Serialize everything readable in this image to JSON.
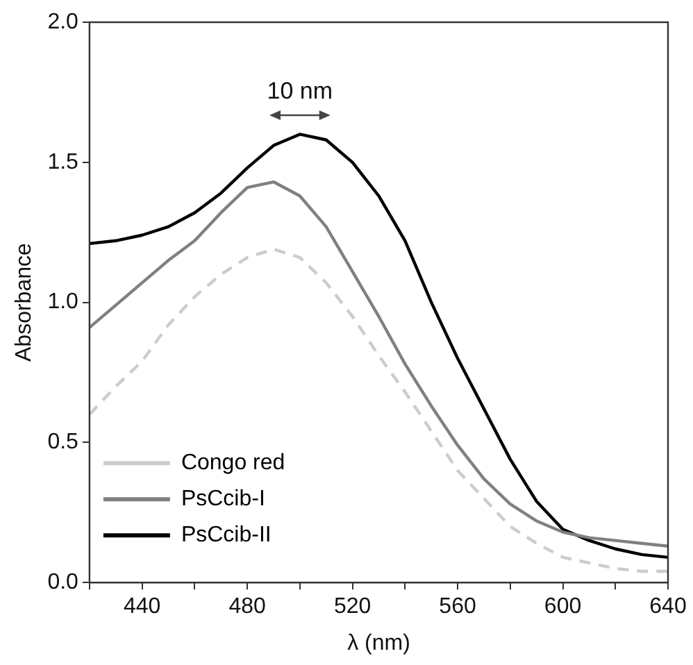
{
  "chart_data": {
    "type": "line",
    "xlabel": "λ (nm)",
    "ylabel": "Absorbance",
    "x": [
      420,
      430,
      440,
      450,
      460,
      470,
      480,
      490,
      500,
      510,
      520,
      530,
      540,
      550,
      560,
      570,
      580,
      590,
      600,
      610,
      620,
      630,
      640
    ],
    "series": [
      {
        "name": "Congo red",
        "color": "#cccccc",
        "line_style": "dashed",
        "values": [
          0.6,
          0.7,
          0.79,
          0.92,
          1.02,
          1.1,
          1.16,
          1.19,
          1.16,
          1.07,
          0.95,
          0.81,
          0.68,
          0.54,
          0.4,
          0.3,
          0.2,
          0.14,
          0.09,
          0.07,
          0.05,
          0.04,
          0.04
        ]
      },
      {
        "name": "PsCcib-I",
        "color": "#808080",
        "line_style": "solid",
        "values": [
          0.91,
          0.99,
          1.07,
          1.15,
          1.22,
          1.32,
          1.41,
          1.43,
          1.38,
          1.27,
          1.11,
          0.95,
          0.78,
          0.63,
          0.49,
          0.37,
          0.28,
          0.22,
          0.18,
          0.16,
          0.15,
          0.14,
          0.13
        ]
      },
      {
        "name": "PsCcib-II",
        "color": "#000000",
        "line_style": "solid",
        "values": [
          1.21,
          1.22,
          1.24,
          1.27,
          1.32,
          1.39,
          1.48,
          1.56,
          1.6,
          1.58,
          1.5,
          1.38,
          1.22,
          1.0,
          0.8,
          0.62,
          0.44,
          0.29,
          0.19,
          0.15,
          0.12,
          0.1,
          0.09
        ]
      }
    ],
    "xlim": [
      420,
      640
    ],
    "xticks": [
      {
        "value": 420,
        "label": null
      },
      440,
      {
        "value": 460,
        "label": null
      },
      480,
      {
        "value": 500,
        "label": null
      },
      520,
      {
        "value": 540,
        "label": null
      },
      560,
      {
        "value": 580,
        "label": null
      },
      600,
      {
        "value": 620,
        "label": null
      },
      640
    ],
    "ylim": [
      0,
      2
    ],
    "yticks": [
      {
        "value": 0,
        "label": "0.0"
      },
      {
        "value": 0.5,
        "label": "0.5"
      },
      {
        "value": 1,
        "label": "1.0"
      },
      {
        "value": 1.5,
        "label": "1.5"
      },
      {
        "value": 2,
        "label": "2.0"
      }
    ],
    "annotations": [
      "10 nm"
    ],
    "grid": false,
    "legend": "bottom left",
    "marker": "none"
  }
}
